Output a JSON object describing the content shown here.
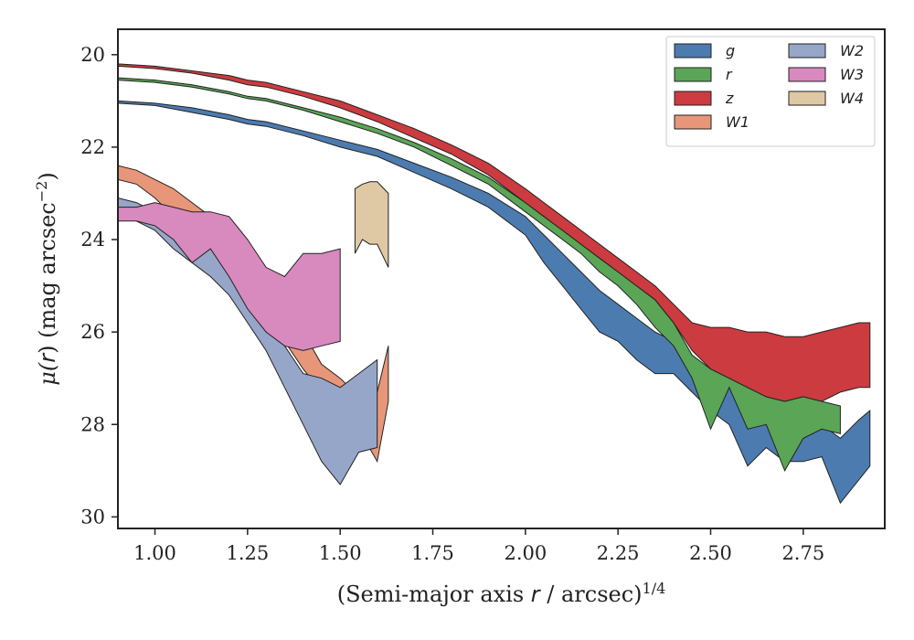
{
  "chart_data": {
    "type": "area",
    "xlabel": "(Semi-major axis r / arcsec)^{1/4}",
    "xlabel_parts": {
      "pre": "(Semi-major axis ",
      "var": "r",
      "mid": " / arcsec)",
      "sup": "1/4"
    },
    "ylabel": "μ(r) (mag arcsec^{-2})",
    "ylabel_parts": {
      "mu": "μ(",
      "var": "r",
      "post": ") (mag arcsec",
      "sup": "−2",
      "close": ")"
    },
    "xlim": [
      0.9,
      2.97
    ],
    "ylim": [
      30.25,
      19.45
    ],
    "y_inverted": true,
    "xticks": [
      1.0,
      1.25,
      1.5,
      1.75,
      2.0,
      2.25,
      2.5,
      2.75
    ],
    "xtick_labels": [
      "1.00",
      "1.25",
      "1.50",
      "1.75",
      "2.00",
      "2.25",
      "2.50",
      "2.75"
    ],
    "yticks": [
      20,
      22,
      24,
      26,
      28,
      30
    ],
    "ytick_labels": [
      "20",
      "22",
      "24",
      "26",
      "28",
      "30"
    ],
    "grid": false,
    "legend": {
      "placement": "top-right",
      "columns": 2
    },
    "series": [
      {
        "name": "g",
        "color": "#4c7bb0",
        "x": [
          0.9,
          1.0,
          1.1,
          1.2,
          1.25,
          1.3,
          1.4,
          1.5,
          1.6,
          1.7,
          1.8,
          1.9,
          2.0,
          2.05,
          2.1,
          2.15,
          2.2,
          2.25,
          2.3,
          2.35,
          2.4,
          2.45,
          2.5,
          2.55,
          2.6,
          2.65,
          2.7,
          2.75,
          2.8,
          2.85,
          2.9,
          2.93
        ],
        "lower": [
          21.0,
          21.05,
          21.15,
          21.3,
          21.4,
          21.45,
          21.65,
          21.85,
          22.05,
          22.35,
          22.65,
          23.0,
          23.5,
          23.9,
          24.3,
          24.7,
          25.1,
          25.4,
          25.7,
          26.0,
          26.2,
          26.6,
          26.9,
          27.2,
          27.6,
          27.9,
          27.9,
          27.9,
          28.0,
          28.3,
          27.9,
          27.7
        ],
        "upper": [
          21.05,
          21.1,
          21.25,
          21.4,
          21.5,
          21.55,
          21.75,
          22.0,
          22.2,
          22.55,
          22.9,
          23.3,
          23.9,
          24.5,
          25.0,
          25.5,
          26.0,
          26.2,
          26.6,
          26.9,
          26.9,
          27.3,
          27.7,
          28.0,
          28.9,
          28.5,
          28.8,
          28.8,
          28.7,
          29.7,
          29.2,
          28.9
        ]
      },
      {
        "name": "r",
        "color": "#5aa556",
        "x": [
          0.9,
          1.0,
          1.1,
          1.2,
          1.25,
          1.3,
          1.4,
          1.5,
          1.6,
          1.7,
          1.8,
          1.9,
          2.0,
          2.05,
          2.1,
          2.15,
          2.2,
          2.25,
          2.3,
          2.35,
          2.4,
          2.45,
          2.5,
          2.55,
          2.6,
          2.65,
          2.7,
          2.75,
          2.8,
          2.85
        ],
        "lower": [
          20.5,
          20.55,
          20.65,
          20.8,
          20.9,
          20.95,
          21.15,
          21.35,
          21.6,
          21.9,
          22.25,
          22.65,
          23.2,
          23.5,
          23.8,
          24.1,
          24.4,
          24.7,
          25.0,
          25.3,
          25.8,
          26.5,
          26.8,
          27.0,
          27.2,
          27.4,
          27.5,
          27.4,
          27.5,
          27.6
        ],
        "upper": [
          20.55,
          20.6,
          20.7,
          20.85,
          20.95,
          21.0,
          21.2,
          21.45,
          21.7,
          22.0,
          22.4,
          22.8,
          23.4,
          23.7,
          24.0,
          24.3,
          24.7,
          25.0,
          25.4,
          25.9,
          26.3,
          27.0,
          28.1,
          27.2,
          28.1,
          28.0,
          29.0,
          28.3,
          28.1,
          28.2
        ]
      },
      {
        "name": "z",
        "color": "#cc3b3f",
        "x": [
          0.9,
          1.0,
          1.1,
          1.2,
          1.25,
          1.3,
          1.4,
          1.5,
          1.6,
          1.7,
          1.8,
          1.9,
          2.0,
          2.05,
          2.1,
          2.15,
          2.2,
          2.25,
          2.3,
          2.35,
          2.4,
          2.45,
          2.5,
          2.55,
          2.6,
          2.65,
          2.7,
          2.75,
          2.8,
          2.85,
          2.9,
          2.93
        ],
        "lower": [
          20.2,
          20.25,
          20.35,
          20.45,
          20.55,
          20.6,
          20.8,
          21.0,
          21.3,
          21.6,
          21.95,
          22.35,
          22.9,
          23.2,
          23.5,
          23.8,
          24.1,
          24.4,
          24.7,
          25.0,
          25.4,
          25.8,
          25.9,
          25.9,
          26.0,
          26.0,
          26.1,
          26.1,
          26.0,
          25.9,
          25.8,
          25.8
        ],
        "upper": [
          20.25,
          20.3,
          20.4,
          20.55,
          20.65,
          20.7,
          20.9,
          21.15,
          21.45,
          21.8,
          22.15,
          22.6,
          23.2,
          23.5,
          23.8,
          24.1,
          24.4,
          24.7,
          25.0,
          25.3,
          25.8,
          26.4,
          26.8,
          27.0,
          27.2,
          27.4,
          27.5,
          27.4,
          27.5,
          27.3,
          27.2,
          27.2
        ]
      },
      {
        "name": "W1",
        "color": "#e8967a",
        "x": [
          0.9,
          0.95,
          1.0,
          1.05,
          1.1,
          1.15,
          1.2,
          1.25,
          1.3,
          1.35,
          1.4,
          1.45,
          1.5,
          1.55,
          1.6,
          1.63
        ],
        "lower": [
          22.4,
          22.5,
          22.7,
          22.9,
          23.2,
          23.5,
          23.9,
          24.3,
          24.8,
          25.4,
          26.0,
          26.7,
          27.0,
          27.4,
          27.3,
          26.3
        ],
        "upper": [
          22.7,
          22.8,
          23.1,
          23.5,
          23.8,
          24.2,
          24.6,
          25.0,
          25.5,
          26.2,
          26.8,
          27.3,
          27.6,
          28.1,
          28.8,
          27.5
        ]
      },
      {
        "name": "W2",
        "color": "#96a6c8",
        "x": [
          0.9,
          0.95,
          1.0,
          1.05,
          1.1,
          1.15,
          1.2,
          1.25,
          1.3,
          1.35,
          1.4,
          1.45,
          1.5,
          1.55,
          1.6
        ],
        "lower": [
          23.1,
          23.2,
          23.4,
          23.6,
          23.9,
          24.1,
          24.5,
          24.9,
          25.6,
          26.3,
          26.9,
          27.0,
          27.2,
          26.9,
          26.6
        ],
        "upper": [
          23.5,
          23.6,
          23.8,
          24.2,
          24.5,
          24.8,
          25.2,
          25.8,
          26.4,
          27.2,
          28.0,
          28.8,
          29.3,
          28.6,
          28.5
        ]
      },
      {
        "name": "W3",
        "color": "#d889be",
        "x": [
          0.9,
          0.95,
          1.0,
          1.05,
          1.1,
          1.15,
          1.2,
          1.25,
          1.3,
          1.35,
          1.4,
          1.45,
          1.5
        ],
        "lower": [
          23.3,
          23.3,
          23.2,
          23.3,
          23.4,
          23.4,
          23.5,
          24.0,
          24.6,
          24.8,
          24.3,
          24.3,
          24.2
        ],
        "upper": [
          23.6,
          23.6,
          23.7,
          24.0,
          24.5,
          24.2,
          24.8,
          25.5,
          26.0,
          26.3,
          26.4,
          26.3,
          26.2
        ]
      },
      {
        "name": "W4",
        "color": "#dfc8a4",
        "x": [
          1.54,
          1.56,
          1.58,
          1.6,
          1.63
        ],
        "lower": [
          22.9,
          22.8,
          22.75,
          22.75,
          23.0
        ],
        "upper": [
          24.3,
          24.0,
          24.1,
          24.1,
          24.6
        ]
      }
    ]
  }
}
